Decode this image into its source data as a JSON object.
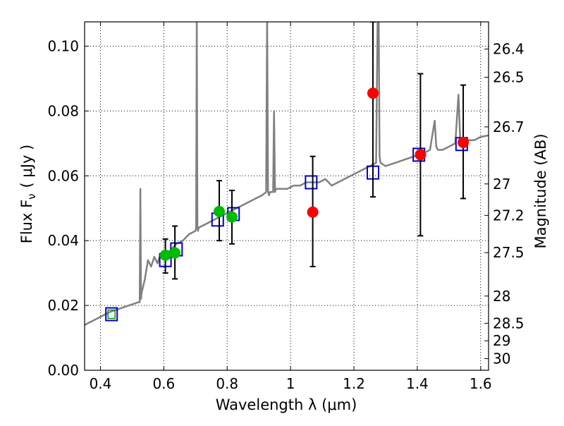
{
  "chart_data": {
    "type": "scatter",
    "title": "",
    "xlabel": "Wavelength  λ (μm)",
    "ylabel": "Flux  F",
    "ylabel_sub": "ν",
    "ylabel_unit": "( μJy )",
    "y2label": "Magnitude (AB)",
    "xlim": [
      0.35,
      1.625
    ],
    "ylim": [
      0.0,
      0.1075
    ],
    "grid": true,
    "xticks": [
      0.4,
      0.6,
      0.8,
      1.0,
      1.2,
      1.4,
      1.6
    ],
    "xtick_labels": [
      "0.4",
      "0.6",
      "0.8",
      "1",
      "1.2",
      "1.4",
      "1.6"
    ],
    "yticks": [
      0.0,
      0.02,
      0.04,
      0.06,
      0.08,
      0.1
    ],
    "ytick_labels": [
      "0.00",
      "0.02",
      "0.04",
      "0.06",
      "0.08",
      "0.10"
    ],
    "y2ticks": [
      {
        "flux": 0.0991,
        "label": "26.4"
      },
      {
        "flux": 0.0904,
        "label": "26.5"
      },
      {
        "flux": 0.0751,
        "label": "26.7"
      },
      {
        "flux": 0.0575,
        "label": "27"
      },
      {
        "flux": 0.0478,
        "label": "27.2"
      },
      {
        "flux": 0.0363,
        "label": "27.5"
      },
      {
        "flux": 0.0229,
        "label": "28"
      },
      {
        "flux": 0.0145,
        "label": "28.5"
      },
      {
        "flux": 0.0091,
        "label": "29"
      },
      {
        "flux": 0.0036,
        "label": "30"
      }
    ],
    "colors": {
      "model": "#808080",
      "green": "#00bb00",
      "red": "#ff0000",
      "box": "#0000cc",
      "box_green": "#009900",
      "errorbar": "#000000"
    },
    "series": [
      {
        "kind": "line",
        "color": "#808080",
        "x": [
          0.35,
          0.37,
          0.4,
          0.43,
          0.46,
          0.49,
          0.52,
          0.524,
          0.526,
          0.528,
          0.53,
          0.54,
          0.55,
          0.56,
          0.57,
          0.58,
          0.59,
          0.6,
          0.62,
          0.64,
          0.66,
          0.68,
          0.7,
          0.702,
          0.704,
          0.706,
          0.708,
          0.71,
          0.73,
          0.75,
          0.77,
          0.79,
          0.81,
          0.83,
          0.85,
          0.87,
          0.89,
          0.91,
          0.923,
          0.926,
          0.929,
          0.932,
          0.935,
          0.945,
          0.948,
          0.951,
          0.954,
          0.97,
          0.99,
          1.01,
          1.03,
          1.05,
          1.07,
          1.09,
          1.11,
          1.13,
          1.15,
          1.17,
          1.19,
          1.21,
          1.23,
          1.25,
          1.27,
          1.275,
          1.278,
          1.281,
          1.284,
          1.3,
          1.33,
          1.36,
          1.39,
          1.42,
          1.44,
          1.455,
          1.46,
          1.465,
          1.48,
          1.5,
          1.52,
          1.53,
          1.535,
          1.54,
          1.56,
          1.58,
          1.6,
          1.625
        ],
        "y": [
          0.014,
          0.015,
          0.0165,
          0.018,
          0.019,
          0.02,
          0.021,
          0.021,
          0.056,
          0.022,
          0.024,
          0.028,
          0.034,
          0.032,
          0.035,
          0.033,
          0.036,
          0.035,
          0.037,
          0.039,
          0.04,
          0.042,
          0.043,
          0.044,
          0.11,
          0.044,
          0.043,
          0.044,
          0.045,
          0.046,
          0.047,
          0.048,
          0.049,
          0.05,
          0.051,
          0.052,
          0.053,
          0.054,
          0.055,
          0.11,
          0.055,
          0.054,
          0.055,
          0.055,
          0.08,
          0.055,
          0.056,
          0.056,
          0.056,
          0.057,
          0.057,
          0.058,
          0.058,
          0.058,
          0.059,
          0.057,
          0.058,
          0.059,
          0.06,
          0.061,
          0.062,
          0.063,
          0.064,
          0.11,
          0.11,
          0.066,
          0.064,
          0.063,
          0.064,
          0.065,
          0.066,
          0.067,
          0.068,
          0.077,
          0.069,
          0.068,
          0.068,
          0.069,
          0.07,
          0.085,
          0.072,
          0.07,
          0.071,
          0.071,
          0.072,
          0.0725
        ]
      },
      {
        "kind": "points",
        "color": "#00bb00",
        "x": [
          0.605,
          0.635,
          0.775,
          0.815
        ],
        "y": [
          0.0355,
          0.0362,
          0.049,
          0.0473
        ],
        "yerr_low": [
          0.03,
          0.0282,
          0.04,
          0.039
        ],
        "yerr_high": [
          0.0405,
          0.0445,
          0.0585,
          0.0555
        ]
      },
      {
        "kind": "points",
        "color": "#ff0000",
        "x": [
          1.07,
          1.26,
          1.41,
          1.545
        ],
        "y": [
          0.0488,
          0.0855,
          0.0665,
          0.0703
        ],
        "yerr_low": [
          0.032,
          0.0535,
          0.0415,
          0.053
        ],
        "yerr_high": [
          0.066,
          0.1075,
          0.0915,
          0.088
        ]
      },
      {
        "kind": "boxes",
        "color": "#0000cc",
        "x": [
          0.435,
          0.605,
          0.64,
          0.77,
          0.82,
          1.065,
          1.26,
          1.405,
          1.54
        ],
        "y": [
          0.0173,
          0.034,
          0.0373,
          0.0465,
          0.0482,
          0.058,
          0.061,
          0.0665,
          0.0698
        ]
      }
    ]
  }
}
